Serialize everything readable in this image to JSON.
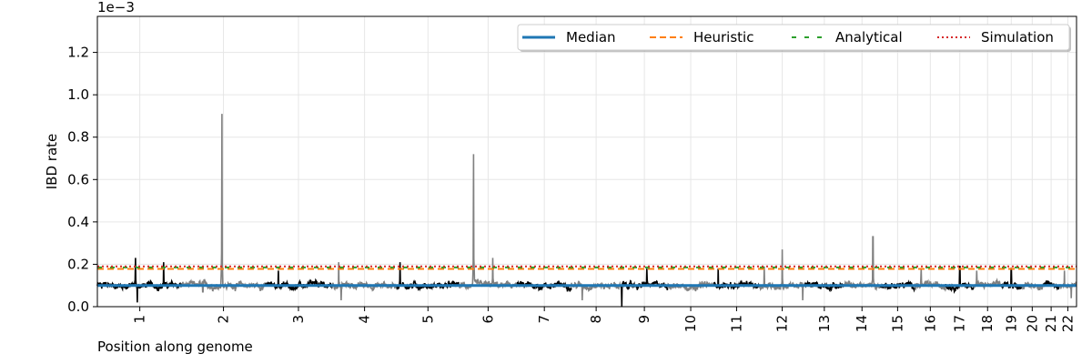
{
  "chart_data": {
    "type": "line",
    "title": "",
    "xlabel": "Position along genome",
    "ylabel": "IBD rate",
    "y_offset_label": "1e−3",
    "ylim": [
      0,
      1.37
    ],
    "y_ticks": [
      0.0,
      0.2,
      0.4,
      0.6,
      0.8,
      1.0,
      1.2
    ],
    "y_tick_labels": [
      "0.0",
      "0.2",
      "0.4",
      "0.6",
      "0.8",
      "1.0",
      "1.2"
    ],
    "y_unit_scale": "1e-3",
    "grid": true,
    "legend_position": "top-right",
    "chromosome_labels": [
      "1",
      "2",
      "3",
      "4",
      "5",
      "6",
      "7",
      "8",
      "9",
      "10",
      "11",
      "12",
      "13",
      "14",
      "15",
      "16",
      "17",
      "18",
      "19",
      "20",
      "21",
      "22"
    ],
    "chromosome_relative_lengths": [
      249,
      242,
      198,
      190,
      182,
      171,
      159,
      145,
      138,
      134,
      135,
      133,
      114,
      107,
      102,
      90,
      83,
      80,
      59,
      64,
      47,
      51
    ],
    "series": [
      {
        "name": "Median",
        "value": 0.1,
        "style": "solid",
        "color": "#1f77b4"
      },
      {
        "name": "Heuristic",
        "value": 0.178,
        "style": "dashed",
        "color": "#ff7f0e"
      },
      {
        "name": "Analytical",
        "value": 0.185,
        "style": "dashed-sparse",
        "color": "#2ca02c"
      },
      {
        "name": "Simulation",
        "value": 0.19,
        "style": "dotted",
        "color": "#d62728"
      }
    ],
    "ibd_trace": {
      "baseline": 0.1,
      "colors": [
        "#000000",
        "#808080"
      ],
      "peaks": [
        {
          "chrom": 1,
          "pos": 0.05,
          "value": 0.085
        },
        {
          "chrom": 1,
          "pos": 0.45,
          "value": 0.23
        },
        {
          "chrom": 1,
          "pos": 0.47,
          "value": 0.02
        },
        {
          "chrom": 1,
          "pos": 0.78,
          "value": 0.21
        },
        {
          "chrom": 2,
          "pos": 0.48,
          "value": 0.91
        },
        {
          "chrom": 2,
          "pos": 0.25,
          "value": 0.07
        },
        {
          "chrom": 3,
          "pos": 0.2,
          "value": 0.17
        },
        {
          "chrom": 4,
          "pos": 0.1,
          "value": 0.21
        },
        {
          "chrom": 4,
          "pos": 0.14,
          "value": 0.03
        },
        {
          "chrom": 5,
          "pos": 0.05,
          "value": 0.21
        },
        {
          "chrom": 6,
          "pos": 0.25,
          "value": 0.72
        },
        {
          "chrom": 6,
          "pos": 0.58,
          "value": 0.23
        },
        {
          "chrom": 7,
          "pos": 0.4,
          "value": 0.08
        },
        {
          "chrom": 8,
          "pos": 0.22,
          "value": 0.03
        },
        {
          "chrom": 9,
          "pos": 0.02,
          "value": 0.0
        },
        {
          "chrom": 9,
          "pos": 0.55,
          "value": 0.18
        },
        {
          "chrom": 11,
          "pos": 0.1,
          "value": 0.18
        },
        {
          "chrom": 12,
          "pos": 0.1,
          "value": 0.19
        },
        {
          "chrom": 12,
          "pos": 0.5,
          "value": 0.27
        },
        {
          "chrom": 12,
          "pos": 0.95,
          "value": 0.03
        },
        {
          "chrom": 14,
          "pos": 0.8,
          "value": 0.33
        },
        {
          "chrom": 16,
          "pos": 0.2,
          "value": 0.18
        },
        {
          "chrom": 17,
          "pos": 0.5,
          "value": 0.19
        },
        {
          "chrom": 18,
          "pos": 0.1,
          "value": 0.17
        },
        {
          "chrom": 19,
          "pos": 0.5,
          "value": 0.18
        },
        {
          "chrom": 22,
          "pos": 0.3,
          "value": 0.17
        },
        {
          "chrom": 22,
          "pos": 0.7,
          "value": 0.04
        }
      ]
    }
  }
}
